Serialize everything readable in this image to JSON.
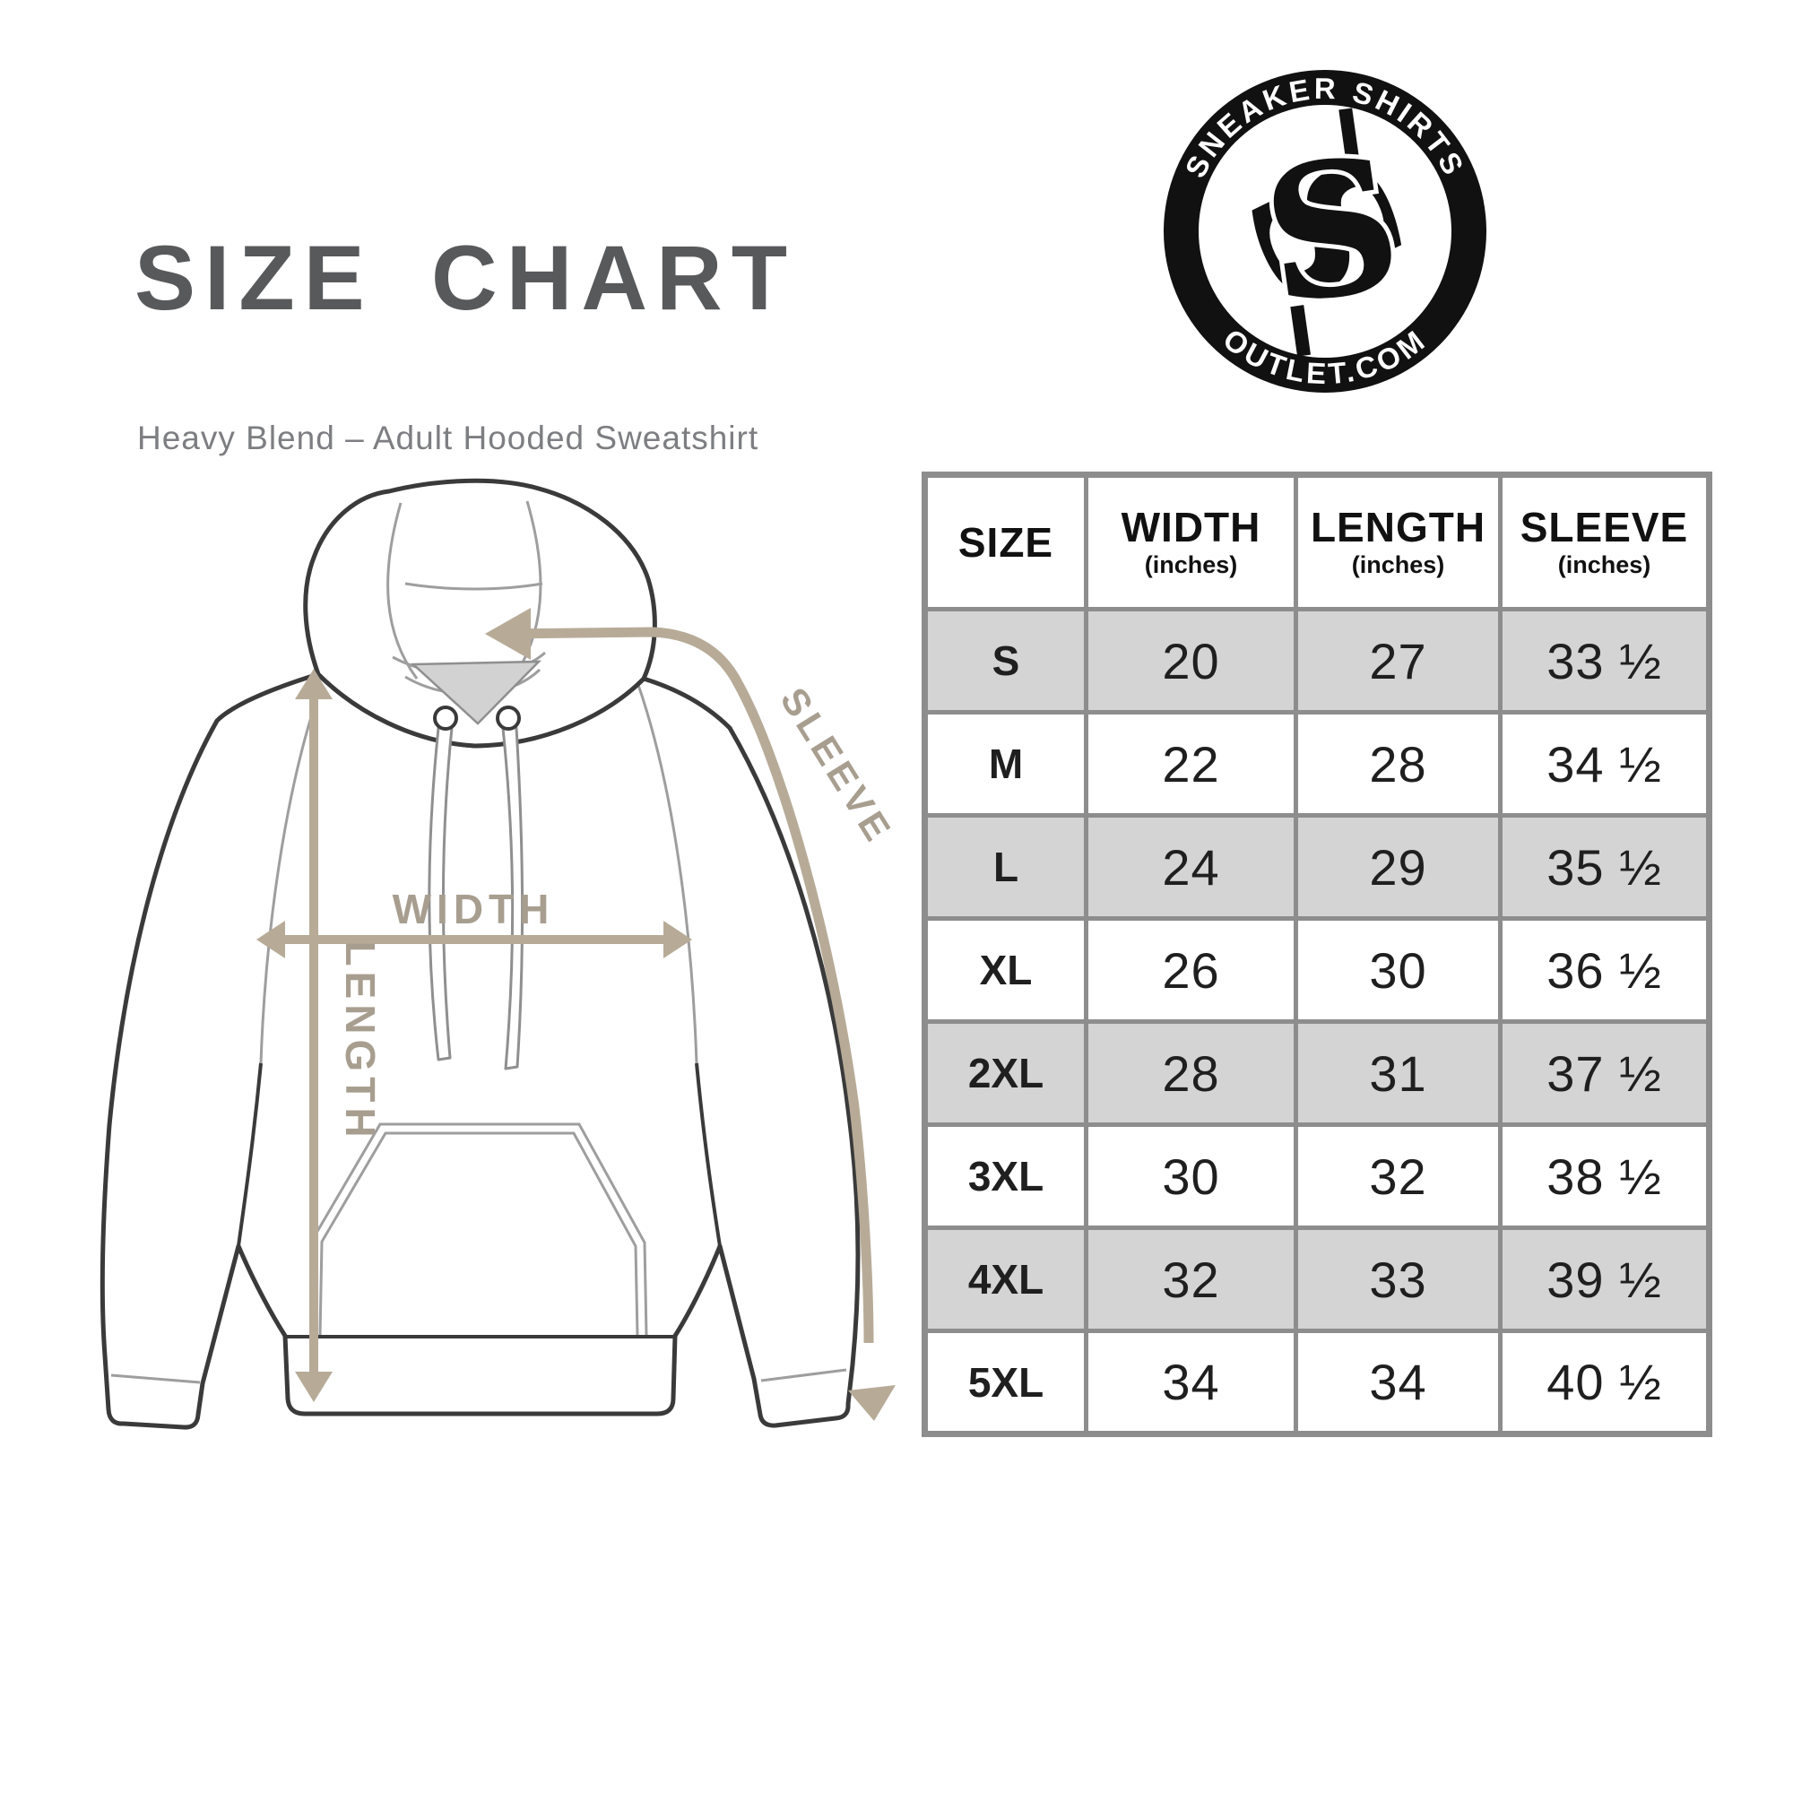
{
  "header": {
    "title": "SIZE CHART",
    "subtitle": "Heavy Blend – Adult Hooded Sweatshirt"
  },
  "logo": {
    "arc_top": "SNEAKER SHIRTS",
    "arc_bottom": "OUTLET.COM",
    "monogram_front": "S",
    "monogram_back": "S",
    "color": "#111111"
  },
  "diagram": {
    "labels": {
      "width": "WIDTH",
      "length": "LENGTH",
      "sleeve": "SLEEVE"
    },
    "colors": {
      "outline": "#3a3a3a",
      "inner_line": "#9e9e9e",
      "arrow": "#b7ab98",
      "label": "#a89e90",
      "neck_fill": "#d2d2d2"
    }
  },
  "table": {
    "columns": [
      {
        "label": "SIZE",
        "sub": ""
      },
      {
        "label": "WIDTH",
        "sub": "(inches)"
      },
      {
        "label": "LENGTH",
        "sub": "(inches)"
      },
      {
        "label": "SLEEVE",
        "sub": "(inches)"
      }
    ],
    "rows": [
      {
        "size": "S",
        "width": "20",
        "length": "27",
        "sleeve": "33 ½"
      },
      {
        "size": "M",
        "width": "22",
        "length": "28",
        "sleeve": "34 ½"
      },
      {
        "size": "L",
        "width": "24",
        "length": "29",
        "sleeve": "35 ½"
      },
      {
        "size": "XL",
        "width": "26",
        "length": "30",
        "sleeve": "36 ½"
      },
      {
        "size": "2XL",
        "width": "28",
        "length": "31",
        "sleeve": "37 ½"
      },
      {
        "size": "3XL",
        "width": "30",
        "length": "32",
        "sleeve": "38 ½"
      },
      {
        "size": "4XL",
        "width": "32",
        "length": "33",
        "sleeve": "39 ½"
      },
      {
        "size": "5XL",
        "width": "34",
        "length": "34",
        "sleeve": "40 ½"
      }
    ],
    "colors": {
      "border": "#8d8d8d",
      "alt_row": "#d4d4d4",
      "text": "#1f1f1f"
    }
  },
  "chart_data": {
    "type": "table",
    "title": "SIZE CHART",
    "subtitle": "Heavy Blend – Adult Hooded Sweatshirt",
    "columns": [
      "SIZE",
      "WIDTH (inches)",
      "LENGTH (inches)",
      "SLEEVE (inches)"
    ],
    "rows": [
      [
        "S",
        20,
        27,
        33.5
      ],
      [
        "M",
        22,
        28,
        34.5
      ],
      [
        "L",
        24,
        29,
        35.5
      ],
      [
        "XL",
        26,
        30,
        36.5
      ],
      [
        "2XL",
        28,
        31,
        37.5
      ],
      [
        "3XL",
        30,
        32,
        38.5
      ],
      [
        "4XL",
        32,
        33,
        39.5
      ],
      [
        "5XL",
        34,
        34,
        40.5
      ]
    ]
  }
}
